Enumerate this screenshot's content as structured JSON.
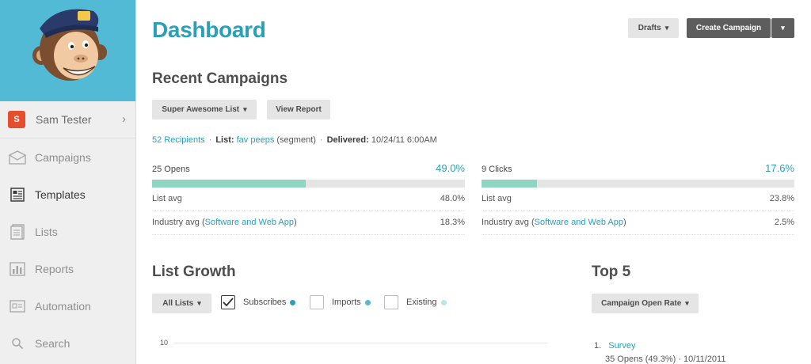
{
  "sidebar": {
    "user": {
      "initial": "S",
      "name": "Sam Tester"
    },
    "items": [
      {
        "label": "Campaigns",
        "icon": "envelope-icon"
      },
      {
        "label": "Templates",
        "icon": "template-icon",
        "active": true
      },
      {
        "label": "Lists",
        "icon": "list-icon"
      },
      {
        "label": "Reports",
        "icon": "chart-icon"
      },
      {
        "label": "Automation",
        "icon": "automation-icon"
      },
      {
        "label": "Search",
        "icon": "search-icon"
      }
    ]
  },
  "header": {
    "title": "Dashboard",
    "drafts_label": "Drafts",
    "create_label": "Create Campaign"
  },
  "recent": {
    "heading": "Recent Campaigns",
    "list_select": "Super Awesome List",
    "view_report": "View Report",
    "recipients": "52 Recipients",
    "list_label": "List:",
    "list_name": "fav peeps",
    "list_suffix": "(segment)",
    "delivered_label": "Delivered:",
    "delivered_value": "10/24/11 6:00AM",
    "opens": {
      "label": "25 Opens",
      "pct": "49.0%",
      "fill": 0.49,
      "list_avg_label": "List avg",
      "list_avg": "48.0%",
      "industry_label": "Industry avg (",
      "industry_link": "Software and Web App",
      "industry_close": ")",
      "industry_avg": "18.3%"
    },
    "clicks": {
      "label": "9 Clicks",
      "pct": "17.6%",
      "fill": 0.176,
      "list_avg_label": "List avg",
      "list_avg": "23.8%",
      "industry_label": "Industry avg (",
      "industry_link": "Software and Web App",
      "industry_close": ")",
      "industry_avg": "2.5%"
    }
  },
  "list_growth": {
    "heading": "List Growth",
    "select": "All Lists",
    "legend": [
      {
        "label": "Subscribes",
        "checked": true,
        "color": "#2b9fb8"
      },
      {
        "label": "Imports",
        "checked": false,
        "color": "#52bad5"
      },
      {
        "label": "Existing",
        "checked": false,
        "color": "#b8e4ef"
      }
    ],
    "y_tick": "10"
  },
  "top5": {
    "heading": "Top 5",
    "select": "Campaign Open Rate",
    "items": [
      {
        "num": "1.",
        "name": "Survey",
        "detail": "35 Opens (49.3%) · 10/11/2011"
      }
    ]
  },
  "colors": {
    "accent": "#2b9fb8",
    "sidebar_header": "#52bad5",
    "bar_fill": "#8fd5c4",
    "badge": "#e4502f"
  }
}
